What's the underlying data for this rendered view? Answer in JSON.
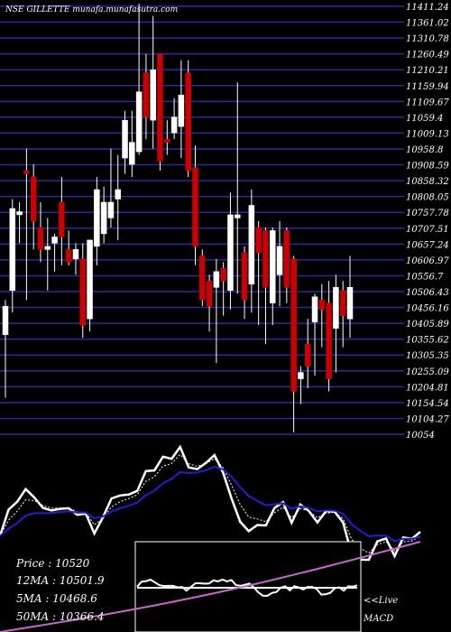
{
  "title": "NSE GILLETTE munafa.munafasutra.com",
  "colors": {
    "background": "#000000",
    "grid": "#2a2aa0",
    "up_candle": "#ffffff",
    "down_candle": "#cc0000",
    "wick": "#ffffff",
    "text": "#ffffff",
    "ma_fast": "#ffffff",
    "ma_signal": "#ffffff",
    "ma_slow": "#1f1fd6",
    "macd_panel_border": "#ffffff",
    "macd_signal": "#cc66cc"
  },
  "info": {
    "price": "Price  : 10520",
    "ma12": "12MA : 10501.9",
    "ma5": "5MA : 10468.6",
    "ma50": "50MA : 10366.4"
  },
  "macd_label_1": "<<Live",
  "macd_label_2": "MACD",
  "chart_data": {
    "type": "candlestick",
    "ylim": [
      10054,
      11411.24
    ],
    "yticks": [
      "11411.24",
      "11361.02",
      "11310.78",
      "11260.49",
      "11210.21",
      "11159.94",
      "11109.67",
      "11059.4",
      "11009.13",
      "10958.8",
      "10908.59",
      "10858.32",
      "10808.05",
      "10757.78",
      "10707.51",
      "10657.24",
      "10606.97",
      "10556.7",
      "10506.43",
      "10456.16",
      "10405.89",
      "10355.62",
      "10305.35",
      "10255.09",
      "10204.81",
      "10154.54",
      "10104.27",
      "10054"
    ],
    "candles": [
      {
        "o": 10370,
        "c": 10460,
        "h": 10480,
        "l": 10170
      },
      {
        "o": 10510,
        "c": 10770,
        "h": 10800,
        "l": 10440
      },
      {
        "o": 10750,
        "c": 10760,
        "h": 10790,
        "l": 10660
      },
      {
        "o": 10890,
        "c": 10880,
        "h": 10960,
        "l": 10480
      },
      {
        "o": 10870,
        "c": 10730,
        "h": 10910,
        "l": 10640
      },
      {
        "o": 10710,
        "c": 10640,
        "h": 10790,
        "l": 10600
      },
      {
        "o": 10640,
        "c": 10650,
        "h": 10740,
        "l": 10510
      },
      {
        "o": 10660,
        "c": 10680,
        "h": 10690,
        "l": 10570
      },
      {
        "o": 10790,
        "c": 10680,
        "h": 10870,
        "l": 10590
      },
      {
        "o": 10640,
        "c": 10600,
        "h": 10700,
        "l": 10590
      },
      {
        "o": 10610,
        "c": 10640,
        "h": 10660,
        "l": 10560
      },
      {
        "o": 10610,
        "c": 10400,
        "h": 10660,
        "l": 10360
      },
      {
        "o": 10420,
        "c": 10670,
        "h": 10670,
        "l": 10380
      },
      {
        "o": 10650,
        "c": 10830,
        "h": 10870,
        "l": 10590
      },
      {
        "o": 10690,
        "c": 10790,
        "h": 10840,
        "l": 10660
      },
      {
        "o": 10740,
        "c": 10790,
        "h": 10960,
        "l": 10710
      },
      {
        "o": 10800,
        "c": 10830,
        "h": 10940,
        "l": 10670
      },
      {
        "o": 10930,
        "c": 11050,
        "h": 11080,
        "l": 10880
      },
      {
        "o": 10910,
        "c": 10980,
        "h": 11080,
        "l": 10870
      },
      {
        "o": 10950,
        "c": 11140,
        "h": 11420,
        "l": 10940
      },
      {
        "o": 11200,
        "c": 11060,
        "h": 11260,
        "l": 10990
      },
      {
        "o": 11050,
        "c": 11210,
        "h": 11380,
        "l": 10960
      },
      {
        "o": 11260,
        "c": 10920,
        "h": 11260,
        "l": 10890
      },
      {
        "o": 10990,
        "c": 10980,
        "h": 11050,
        "l": 10940
      },
      {
        "o": 11010,
        "c": 11060,
        "h": 11120,
        "l": 10990
      },
      {
        "o": 11030,
        "c": 11130,
        "h": 11240,
        "l": 10930
      },
      {
        "o": 11200,
        "c": 10890,
        "h": 11240,
        "l": 10870
      },
      {
        "o": 10900,
        "c": 10650,
        "h": 10970,
        "l": 10590
      },
      {
        "o": 10620,
        "c": 10480,
        "h": 10640,
        "l": 10460
      },
      {
        "o": 10540,
        "c": 10460,
        "h": 10560,
        "l": 10380
      },
      {
        "o": 10520,
        "c": 10570,
        "h": 10610,
        "l": 10280
      },
      {
        "o": 10580,
        "c": 10540,
        "h": 10600,
        "l": 10430
      },
      {
        "o": 10510,
        "c": 10750,
        "h": 10820,
        "l": 10450
      },
      {
        "o": 10740,
        "c": 10750,
        "h": 11170,
        "l": 10500
      },
      {
        "o": 10630,
        "c": 10480,
        "h": 10650,
        "l": 10420
      },
      {
        "o": 10530,
        "c": 10780,
        "h": 10830,
        "l": 10440
      },
      {
        "o": 10710,
        "c": 10630,
        "h": 10730,
        "l": 10400
      },
      {
        "o": 10700,
        "c": 10520,
        "h": 10710,
        "l": 10340
      },
      {
        "o": 10470,
        "c": 10700,
        "h": 10710,
        "l": 10400
      },
      {
        "o": 10560,
        "c": 10650,
        "h": 10730,
        "l": 10460
      },
      {
        "o": 10700,
        "c": 10520,
        "h": 10710,
        "l": 10470
      },
      {
        "o": 10610,
        "c": 10190,
        "h": 10620,
        "l": 10060
      },
      {
        "o": 10230,
        "c": 10250,
        "h": 10270,
        "l": 10150
      },
      {
        "o": 10340,
        "c": 10270,
        "h": 10420,
        "l": 10200
      },
      {
        "o": 10410,
        "c": 10490,
        "h": 10500,
        "l": 10240
      },
      {
        "o": 10480,
        "c": 10450,
        "h": 10530,
        "l": 10330
      },
      {
        "o": 10470,
        "c": 10230,
        "h": 10540,
        "l": 10190
      },
      {
        "o": 10390,
        "c": 10520,
        "h": 10560,
        "l": 10250
      },
      {
        "o": 10510,
        "c": 10430,
        "h": 10540,
        "l": 10330
      },
      {
        "o": 10420,
        "c": 10520,
        "h": 10620,
        "l": 10360
      }
    ]
  }
}
